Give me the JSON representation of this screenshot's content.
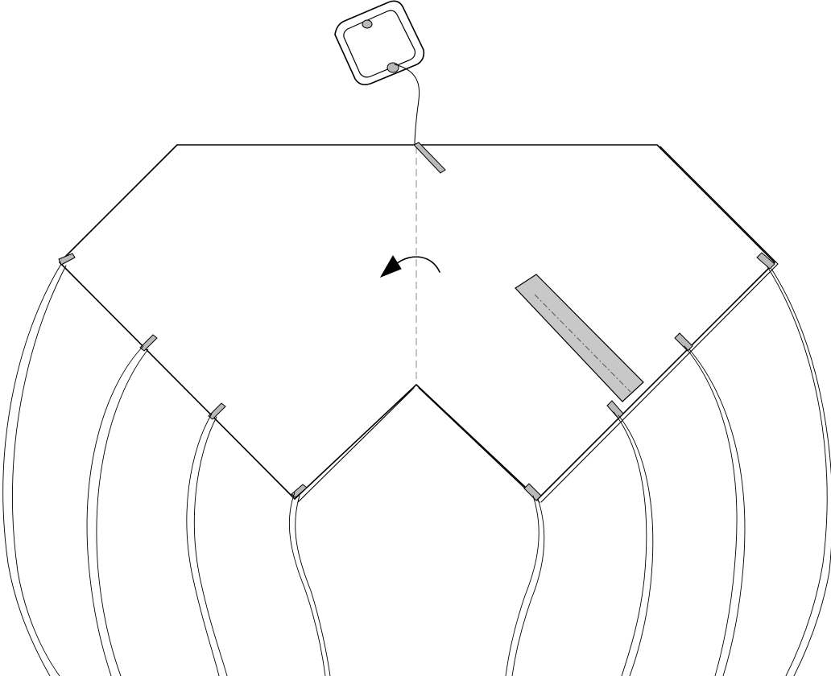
{
  "diagram": {
    "kind": "assembly-instruction",
    "colors": {
      "line": "#000000",
      "background": "#ffffff",
      "tab_fill": "#b9b9b9",
      "tape_fill": "#c8c8c8",
      "fold_line": "#8a8a8a"
    },
    "parts": {
      "hanger": "square-ring-hanger",
      "panel": "folded-paper-panel",
      "tape": "adhesive-strip",
      "arrow": "curved-rotate-arrow-icon",
      "fold": "center-fold-line",
      "strings": "hanging-strings"
    }
  }
}
